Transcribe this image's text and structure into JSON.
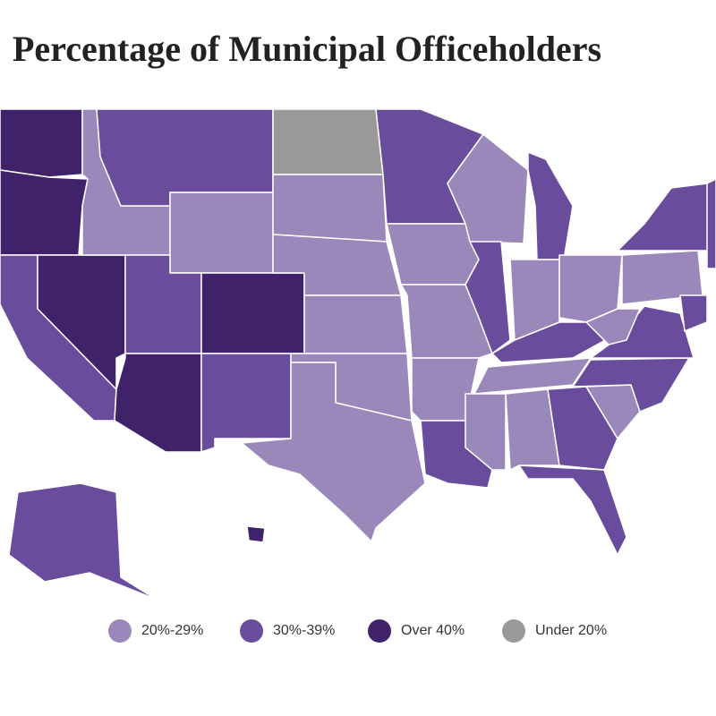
{
  "title": "Percentage of Municipal Officeholders",
  "legend": {
    "items": [
      {
        "label": "20%-29%",
        "color": "#9a88ba"
      },
      {
        "label": "30%-39%",
        "color": "#6a4c9c"
      },
      {
        "label": "Over 40%",
        "color": "#40226a"
      },
      {
        "label": "Under 20%",
        "color": "#999999"
      }
    ]
  },
  "regions": [
    2,
    2,
    1,
    2,
    0,
    1,
    0,
    1,
    2,
    2,
    1,
    3,
    0,
    0,
    0,
    0,
    0,
    1,
    0,
    0,
    0,
    1,
    0,
    1,
    1,
    0,
    0,
    1,
    0,
    0,
    0,
    1,
    1,
    0,
    1,
    1,
    0,
    0,
    1,
    1,
    1,
    1,
    2
  ]
}
